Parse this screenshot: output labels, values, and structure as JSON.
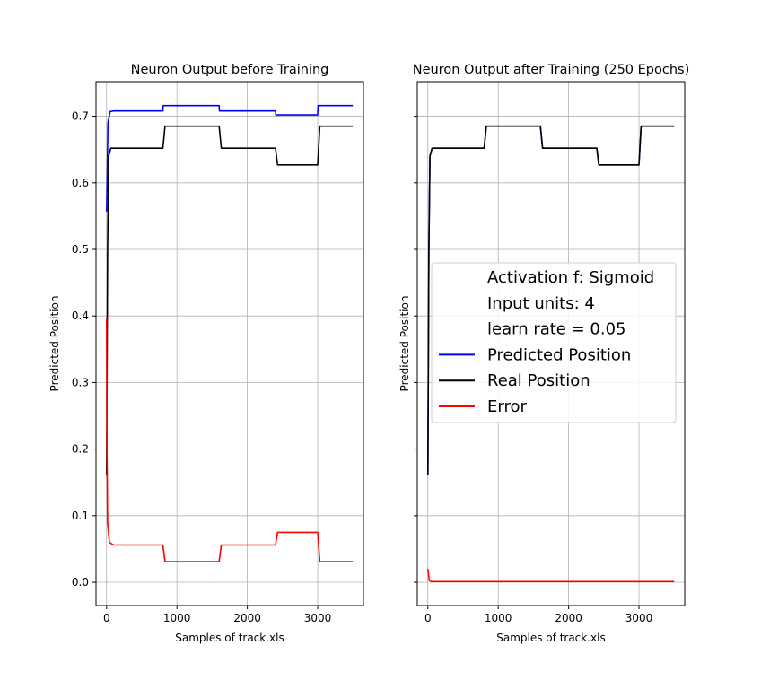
{
  "chart_data": [
    {
      "type": "line",
      "title": "Neuron Output before Training",
      "xlabel": "Samples of track.xls",
      "ylabel": "Predicted Position",
      "xlim": [
        -150,
        3650
      ],
      "ylim": [
        -0.035,
        0.752
      ],
      "xticks": [
        0,
        1000,
        2000,
        3000
      ],
      "yticks": [
        0.0,
        0.1,
        0.2,
        0.3,
        0.4,
        0.5,
        0.6,
        0.7
      ],
      "grid": true,
      "series": [
        {
          "name": "Predicted Position",
          "color": "#0000ff",
          "x": [
            0,
            20,
            50,
            100,
            800,
            805,
            1600,
            1605,
            2400,
            2405,
            3000,
            3005,
            3500
          ],
          "y": [
            0.557,
            0.69,
            0.707,
            0.708,
            0.708,
            0.716,
            0.716,
            0.708,
            0.708,
            0.702,
            0.702,
            0.716,
            0.716
          ]
        },
        {
          "name": "Real Position",
          "color": "#000000",
          "x": [
            0,
            15,
            30,
            60,
            800,
            830,
            1600,
            1630,
            2400,
            2430,
            3000,
            3030,
            3500
          ],
          "y": [
            0.161,
            0.5,
            0.64,
            0.652,
            0.652,
            0.685,
            0.685,
            0.652,
            0.652,
            0.627,
            0.627,
            0.685,
            0.685
          ]
        },
        {
          "name": "Error",
          "color": "#ff0000",
          "x": [
            0,
            5,
            15,
            40,
            100,
            800,
            830,
            1600,
            1630,
            2400,
            2430,
            3000,
            3030,
            3500
          ],
          "y": [
            0.396,
            0.2,
            0.09,
            0.06,
            0.056,
            0.056,
            0.031,
            0.031,
            0.056,
            0.056,
            0.075,
            0.075,
            0.031,
            0.031
          ]
        }
      ]
    },
    {
      "type": "line",
      "title": "Neuron Output after Training (250 Epochs)",
      "xlabel": "Samples of track.xls",
      "ylabel": "Predicted Position",
      "xlim": [
        -150,
        3650
      ],
      "ylim": [
        -0.035,
        0.752
      ],
      "xticks": [
        0,
        1000,
        2000,
        3000
      ],
      "yticks": [
        0.0,
        0.1,
        0.2,
        0.3,
        0.4,
        0.5,
        0.6,
        0.7
      ],
      "grid": true,
      "legend_position": "center-right",
      "legend_text": [
        "Activation f: Sigmoid",
        "Input units: 4",
        "learn rate = 0.05"
      ],
      "series": [
        {
          "name": "Predicted Position",
          "color": "#0000ff",
          "x": [
            0,
            15,
            30,
            60,
            800,
            830,
            1600,
            1630,
            2400,
            2430,
            3000,
            3030,
            3500
          ],
          "y": [
            0.161,
            0.5,
            0.64,
            0.652,
            0.652,
            0.685,
            0.685,
            0.652,
            0.652,
            0.627,
            0.627,
            0.685,
            0.685
          ]
        },
        {
          "name": "Real Position",
          "color": "#000000",
          "x": [
            0,
            15,
            30,
            60,
            800,
            830,
            1600,
            1630,
            2400,
            2430,
            3000,
            3030,
            3500
          ],
          "y": [
            0.161,
            0.5,
            0.64,
            0.652,
            0.652,
            0.685,
            0.685,
            0.652,
            0.652,
            0.627,
            0.627,
            0.685,
            0.685
          ]
        },
        {
          "name": "Error",
          "color": "#ff0000",
          "x": [
            0,
            20,
            50,
            100,
            3500
          ],
          "y": [
            0.02,
            0.003,
            0.001,
            0.001,
            0.001
          ]
        }
      ]
    }
  ]
}
